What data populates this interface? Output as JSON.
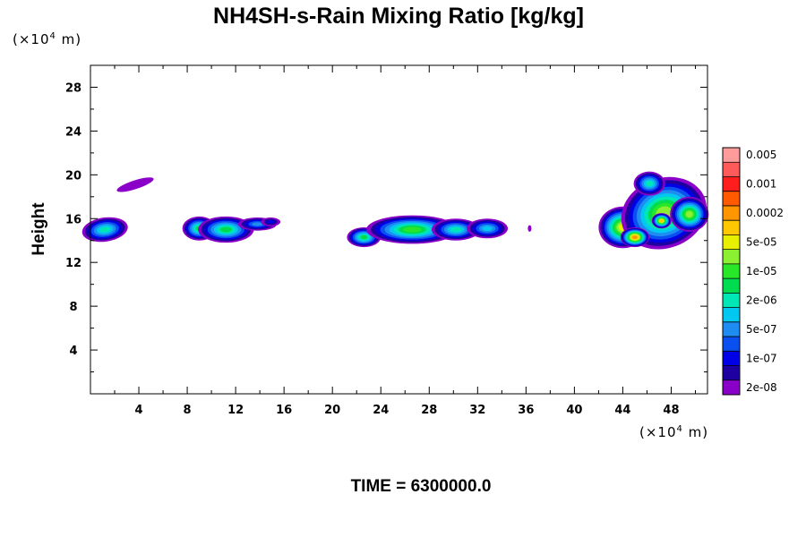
{
  "chart_data": {
    "type": "contour",
    "title": "NH4SH-s-Rain Mixing Ratio [kg/kg]",
    "x_unit": {
      "prefix": "(×10",
      "exp": "4",
      "suffix": " m)"
    },
    "y_unit": {
      "prefix": "(×10",
      "exp": "4",
      "suffix": " m)"
    },
    "ylabel": "Height",
    "xlim": [
      0,
      51
    ],
    "ylim": [
      0,
      30
    ],
    "x_ticks": [
      "4",
      "8",
      "12",
      "16",
      "20",
      "24",
      "28",
      "32",
      "36",
      "40",
      "44",
      "48"
    ],
    "x_tick_values": [
      4,
      8,
      12,
      16,
      20,
      24,
      28,
      32,
      36,
      40,
      44,
      48
    ],
    "y_ticks": [
      "4",
      "8",
      "12",
      "16",
      "20",
      "24",
      "28"
    ],
    "y_tick_values": [
      4,
      8,
      12,
      16,
      20,
      24,
      28
    ],
    "colorbar": {
      "levels": [
        "2e-08",
        "1e-07",
        "5e-07",
        "2e-06",
        "1e-05",
        "5e-05",
        "0.0002",
        "0.001",
        "0.005"
      ],
      "colors": [
        "#8a00c8",
        "#1e00a0",
        "#0000e6",
        "#0a50f0",
        "#1e8cf0",
        "#00c8f0",
        "#00e6b4",
        "#00dc50",
        "#28e628",
        "#8cf032",
        "#e6f000",
        "#ffc800",
        "#ff9600",
        "#ff5a00",
        "#ff1e1e",
        "#ff5a5a",
        "#ff9b9b"
      ]
    },
    "features": [
      {
        "name": "blob-a",
        "x": [
          0.0,
          2.9
        ],
        "y": [
          13.9,
          16.2
        ],
        "peak": "2e-06"
      },
      {
        "name": "blob-b",
        "x": [
          2.1,
          5.1
        ],
        "y": [
          18.6,
          19.7
        ],
        "peak": "2e-08"
      },
      {
        "name": "blob-c",
        "x": [
          7.6,
          15.7
        ],
        "y": [
          14.1,
          16.4
        ],
        "peak": "5e-05"
      },
      {
        "name": "blob-d",
        "x": [
          21.0,
          34.8
        ],
        "y": [
          13.6,
          16.4
        ],
        "peak": "5e-05"
      },
      {
        "name": "blob-e",
        "x": [
          42.2,
          51.0
        ],
        "y": [
          13.2,
          20.4
        ],
        "peak": "0.0002"
      }
    ]
  },
  "time_label": "TIME = 6300000.0"
}
